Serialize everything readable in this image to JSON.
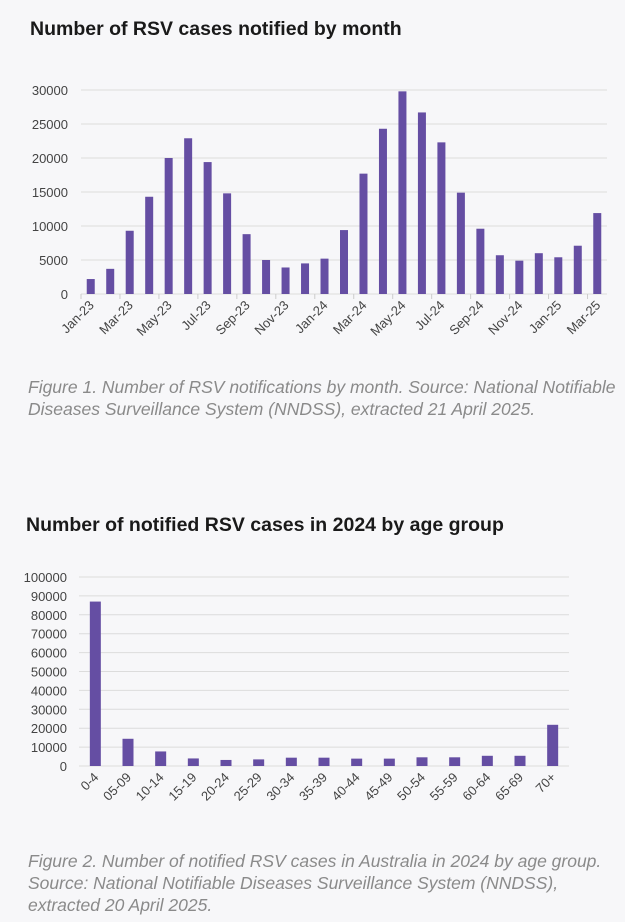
{
  "chart_data": [
    {
      "type": "bar",
      "title": "Number of RSV cases notified by month",
      "caption": "Figure 1. Number of RSV notifications by month. Source: National Notifiable Diseases Surveillance System (NNDSS), extracted 21 April 2025.",
      "categories": [
        "Jan-23",
        "Feb-23",
        "Mar-23",
        "Apr-23",
        "May-23",
        "Jun-23",
        "Jul-23",
        "Aug-23",
        "Sep-23",
        "Oct-23",
        "Nov-23",
        "Dec-23",
        "Jan-24",
        "Feb-24",
        "Mar-24",
        "Apr-24",
        "May-24",
        "Jun-24",
        "Jul-24",
        "Aug-24",
        "Sep-24",
        "Oct-24",
        "Nov-24",
        "Dec-24",
        "Jan-25",
        "Feb-25",
        "Mar-25"
      ],
      "shown_tick_labels": [
        "Jan-23",
        "Mar-23",
        "May-23",
        "Jul-23",
        "Sep-23",
        "Nov-23",
        "Jan-24",
        "Mar-24",
        "May-24",
        "Jul-24",
        "Sep-24",
        "Nov-24",
        "Jan-25",
        "Mar-25"
      ],
      "values": [
        2200,
        3700,
        9300,
        14300,
        20000,
        22900,
        19400,
        14800,
        8800,
        5000,
        3900,
        4500,
        5200,
        9400,
        17700,
        24300,
        29800,
        26700,
        22300,
        14900,
        9600,
        5700,
        4900,
        6000,
        5400,
        7100,
        11900
      ],
      "yticks": [
        0,
        5000,
        10000,
        15000,
        20000,
        25000,
        30000
      ],
      "ylim": [
        0,
        30000
      ],
      "grid": true,
      "color": "#654ea3"
    },
    {
      "type": "bar",
      "title": "Number of notified RSV cases in 2024 by age group",
      "caption": "Figure 2. Number of notified RSV cases in Australia in 2024 by age group. Source: National Notifiable Diseases Surveillance System (NNDSS), extracted 20 April 2025.",
      "categories": [
        "0-4",
        "05-09",
        "10-14",
        "15-19",
        "20-24",
        "25-29",
        "30-34",
        "35-39",
        "40-44",
        "45-49",
        "50-54",
        "55-59",
        "60-64",
        "65-69",
        "70+"
      ],
      "values": [
        87000,
        14400,
        7700,
        4000,
        3200,
        3500,
        4400,
        4400,
        3900,
        3900,
        4600,
        4600,
        5400,
        5400,
        21800
      ],
      "yticks": [
        0,
        10000,
        20000,
        30000,
        40000,
        50000,
        60000,
        70000,
        80000,
        90000,
        100000
      ],
      "ylim": [
        0,
        100000
      ],
      "grid": true,
      "color": "#654ea3"
    }
  ]
}
